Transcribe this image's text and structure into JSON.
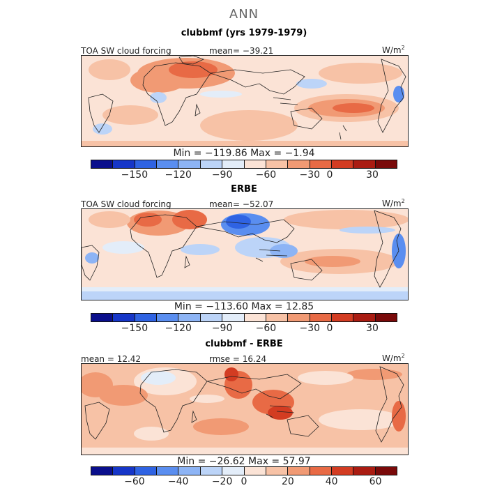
{
  "header": {
    "title": "ANN"
  },
  "panels": [
    {
      "subtitle": "clubbmf (yrs 1979-1979)",
      "left_label": "TOA SW cloud forcing",
      "center_label": "mean= −39.21",
      "units": "W/m",
      "units_sup": "2",
      "minmax": "Min = −119.86 Max =  −1.94",
      "tick_labels": [
        "−150",
        "−120",
        "−90",
        "−60",
        "−30",
        "0",
        "30"
      ]
    },
    {
      "subtitle": "ERBE",
      "left_label": "TOA SW cloud forcing",
      "center_label": "mean= −52.07",
      "units": "W/m",
      "units_sup": "2",
      "minmax": "Min = −113.60 Max =  12.85",
      "tick_labels": [
        "−150",
        "−120",
        "−90",
        "−60",
        "−30",
        "0",
        "30"
      ]
    },
    {
      "subtitle": "clubbmf - ERBE",
      "left_label": "mean =  12.42",
      "center_label": "rmse =  16.24",
      "units": "W/m",
      "units_sup": "2",
      "minmax": "Min = −26.62 Max =  57.97",
      "tick_labels": [
        "−60",
        "−40",
        "−20",
        "0",
        "20",
        "40",
        "60"
      ]
    }
  ],
  "colorbar_colors": [
    "#0a0f8c",
    "#1636c8",
    "#2f63e3",
    "#5a8ef0",
    "#8db4f5",
    "#bcd4f8",
    "#e3edf9",
    "#fbe3d6",
    "#f7c2a6",
    "#f19a74",
    "#e86a45",
    "#d33c22",
    "#aa1c12",
    "#7a0a0a"
  ],
  "chart_data": [
    {
      "type": "heatmap",
      "title": "clubbmf (yrs 1979-1979)",
      "variable": "TOA SW cloud forcing",
      "units": "W/m2",
      "mean": -39.21,
      "min": -119.86,
      "max": -1.94,
      "colorbar_levels": [
        -150,
        -120,
        -90,
        -60,
        -30,
        0,
        30
      ]
    },
    {
      "type": "heatmap",
      "title": "ERBE",
      "variable": "TOA SW cloud forcing",
      "units": "W/m2",
      "mean": -52.07,
      "min": -113.6,
      "max": 12.85,
      "colorbar_levels": [
        -150,
        -120,
        -90,
        -60,
        -30,
        0,
        30
      ]
    },
    {
      "type": "heatmap",
      "title": "clubbmf - ERBE",
      "units": "W/m2",
      "mean": 12.42,
      "rmse": 16.24,
      "min": -26.62,
      "max": 57.97,
      "colorbar_levels": [
        -60,
        -40,
        -20,
        0,
        20,
        40,
        60
      ]
    }
  ]
}
